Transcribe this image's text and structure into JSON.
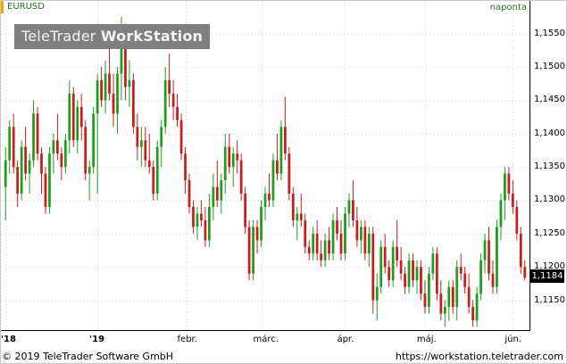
{
  "symbol": "EURUSD",
  "period": "naponta",
  "watermark": {
    "part1": "TeleTrader ",
    "part2": "WorkStation"
  },
  "last_price": "1,1184",
  "footer": {
    "copyright": "© 2019 TeleTrader Software GmbH",
    "url": "https://workstation.teletrader.com"
  },
  "colors": {
    "up": "#1e9e1e",
    "down": "#c81e1e",
    "accent": "#f2a900",
    "text_green": "#1e7a1e"
  },
  "chart_data": {
    "type": "candlestick",
    "title": "EURUSD",
    "ylim": [
      1.1108,
      1.1595
    ],
    "y_ticks": [
      {
        "v": 1.155,
        "label": "1,1550"
      },
      {
        "v": 1.15,
        "label": "1,1500"
      },
      {
        "v": 1.145,
        "label": "1,1450"
      },
      {
        "v": 1.14,
        "label": "1,1400"
      },
      {
        "v": 1.135,
        "label": "1,1350"
      },
      {
        "v": 1.13,
        "label": "1,1300"
      },
      {
        "v": 1.125,
        "label": "1,1250"
      },
      {
        "v": 1.12,
        "label": "1,1200"
      },
      {
        "v": 1.115,
        "label": "1,1150"
      }
    ],
    "x_ticks": [
      {
        "i": 0,
        "label": "'18",
        "bold": true
      },
      {
        "i": 23,
        "label": "'19",
        "bold": true
      },
      {
        "i": 45,
        "label": "febr.",
        "bold": false
      },
      {
        "i": 64,
        "label": "márc.",
        "bold": false
      },
      {
        "i": 85,
        "label": "ápr.",
        "bold": false
      },
      {
        "i": 105,
        "label": "máj.",
        "bold": false
      },
      {
        "i": 127,
        "label": "jún.",
        "bold": false
      }
    ],
    "candles": [
      [
        1.132,
        1.138,
        1.127,
        1.136
      ],
      [
        1.136,
        1.142,
        1.134,
        1.141
      ],
      [
        1.141,
        1.143,
        1.134,
        1.135
      ],
      [
        1.135,
        1.136,
        1.129,
        1.131
      ],
      [
        1.131,
        1.139,
        1.13,
        1.138
      ],
      [
        1.138,
        1.141,
        1.133,
        1.134
      ],
      [
        1.134,
        1.137,
        1.131,
        1.136
      ],
      [
        1.136,
        1.145,
        1.135,
        1.143
      ],
      [
        1.143,
        1.144,
        1.136,
        1.137
      ],
      [
        1.137,
        1.138,
        1.131,
        1.134
      ],
      [
        1.134,
        1.135,
        1.128,
        1.129
      ],
      [
        1.129,
        1.138,
        1.128,
        1.137
      ],
      [
        1.137,
        1.14,
        1.134,
        1.139
      ],
      [
        1.139,
        1.143,
        1.136,
        1.137
      ],
      [
        1.137,
        1.138,
        1.133,
        1.135
      ],
      [
        1.135,
        1.14,
        1.134,
        1.139
      ],
      [
        1.139,
        1.148,
        1.137,
        1.146
      ],
      [
        1.146,
        1.147,
        1.138,
        1.139
      ],
      [
        1.139,
        1.145,
        1.137,
        1.144
      ],
      [
        1.144,
        1.146,
        1.139,
        1.141
      ],
      [
        1.141,
        1.142,
        1.133,
        1.134
      ],
      [
        1.134,
        1.136,
        1.13,
        1.135
      ],
      [
        1.135,
        1.144,
        1.134,
        1.143
      ],
      [
        1.143,
        1.149,
        1.131,
        1.148
      ],
      [
        1.148,
        1.15,
        1.144,
        1.145
      ],
      [
        1.145,
        1.151,
        1.143,
        1.149
      ],
      [
        1.149,
        1.154,
        1.145,
        1.146
      ],
      [
        1.146,
        1.149,
        1.141,
        1.143
      ],
      [
        1.143,
        1.15,
        1.14,
        1.149
      ],
      [
        1.149,
        1.1575,
        1.145,
        1.154
      ],
      [
        1.154,
        1.1565,
        1.145,
        1.147
      ],
      [
        1.147,
        1.151,
        1.144,
        1.148
      ],
      [
        1.148,
        1.149,
        1.14,
        1.141
      ],
      [
        1.141,
        1.143,
        1.136,
        1.138
      ],
      [
        1.138,
        1.141,
        1.135,
        1.139
      ],
      [
        1.139,
        1.141,
        1.135,
        1.136
      ],
      [
        1.136,
        1.14,
        1.134,
        1.135
      ],
      [
        1.135,
        1.136,
        1.13,
        1.131
      ],
      [
        1.131,
        1.139,
        1.13,
        1.138
      ],
      [
        1.138,
        1.142,
        1.135,
        1.141
      ],
      [
        1.141,
        1.15,
        1.14,
        1.148
      ],
      [
        1.148,
        1.152,
        1.144,
        1.146
      ],
      [
        1.146,
        1.148,
        1.142,
        1.144
      ],
      [
        1.144,
        1.146,
        1.141,
        1.142
      ],
      [
        1.142,
        1.143,
        1.136,
        1.137
      ],
      [
        1.137,
        1.138,
        1.131,
        1.133
      ],
      [
        1.133,
        1.134,
        1.128,
        1.129
      ],
      [
        1.129,
        1.13,
        1.125,
        1.126
      ],
      [
        1.126,
        1.129,
        1.124,
        1.128
      ],
      [
        1.128,
        1.13,
        1.126,
        1.127
      ],
      [
        1.127,
        1.129,
        1.123,
        1.124
      ],
      [
        1.124,
        1.131,
        1.123,
        1.129
      ],
      [
        1.129,
        1.134,
        1.127,
        1.132
      ],
      [
        1.132,
        1.136,
        1.129,
        1.13
      ],
      [
        1.13,
        1.134,
        1.128,
        1.133
      ],
      [
        1.133,
        1.14,
        1.131,
        1.138
      ],
      [
        1.138,
        1.14,
        1.134,
        1.135
      ],
      [
        1.135,
        1.138,
        1.132,
        1.137
      ],
      [
        1.137,
        1.139,
        1.134,
        1.136
      ],
      [
        1.136,
        1.137,
        1.13,
        1.131
      ],
      [
        1.131,
        1.132,
        1.125,
        1.126
      ],
      [
        1.126,
        1.127,
        1.118,
        1.119
      ],
      [
        1.119,
        1.127,
        1.118,
        1.126
      ],
      [
        1.126,
        1.127,
        1.122,
        1.124
      ],
      [
        1.124,
        1.13,
        1.123,
        1.129
      ],
      [
        1.129,
        1.132,
        1.127,
        1.131
      ],
      [
        1.131,
        1.134,
        1.129,
        1.13
      ],
      [
        1.13,
        1.137,
        1.129,
        1.136
      ],
      [
        1.136,
        1.14,
        1.133,
        1.134
      ],
      [
        1.134,
        1.142,
        1.133,
        1.141
      ],
      [
        1.141,
        1.1455,
        1.136,
        1.137
      ],
      [
        1.137,
        1.138,
        1.13,
        1.131
      ],
      [
        1.131,
        1.132,
        1.126,
        1.127
      ],
      [
        1.127,
        1.129,
        1.124,
        1.128
      ],
      [
        1.128,
        1.131,
        1.126,
        1.127
      ],
      [
        1.127,
        1.128,
        1.122,
        1.123
      ],
      [
        1.123,
        1.124,
        1.121,
        1.122
      ],
      [
        1.122,
        1.126,
        1.121,
        1.125
      ],
      [
        1.125,
        1.127,
        1.121,
        1.122
      ],
      [
        1.122,
        1.124,
        1.12,
        1.121
      ],
      [
        1.121,
        1.125,
        1.12,
        1.124
      ],
      [
        1.124,
        1.126,
        1.121,
        1.122
      ],
      [
        1.122,
        1.128,
        1.121,
        1.127
      ],
      [
        1.127,
        1.129,
        1.124,
        1.125
      ],
      [
        1.125,
        1.127,
        1.121,
        1.122
      ],
      [
        1.122,
        1.129,
        1.121,
        1.128
      ],
      [
        1.128,
        1.131,
        1.126,
        1.13
      ],
      [
        1.13,
        1.133,
        1.126,
        1.127
      ],
      [
        1.127,
        1.129,
        1.123,
        1.124
      ],
      [
        1.124,
        1.127,
        1.122,
        1.126
      ],
      [
        1.126,
        1.127,
        1.121,
        1.122
      ],
      [
        1.122,
        1.126,
        1.12,
        1.125
      ],
      [
        1.125,
        1.126,
        1.113,
        1.115
      ],
      [
        1.115,
        1.119,
        1.112,
        1.117
      ],
      [
        1.117,
        1.124,
        1.116,
        1.123
      ],
      [
        1.123,
        1.125,
        1.119,
        1.12
      ],
      [
        1.12,
        1.121,
        1.117,
        1.118
      ],
      [
        1.118,
        1.124,
        1.117,
        1.123
      ],
      [
        1.123,
        1.127,
        1.12,
        1.121
      ],
      [
        1.121,
        1.123,
        1.118,
        1.119
      ],
      [
        1.119,
        1.12,
        1.116,
        1.117
      ],
      [
        1.117,
        1.122,
        1.116,
        1.121
      ],
      [
        1.121,
        1.122,
        1.117,
        1.118
      ],
      [
        1.118,
        1.121,
        1.116,
        1.12
      ],
      [
        1.12,
        1.121,
        1.115,
        1.116
      ],
      [
        1.116,
        1.118,
        1.113,
        1.114
      ],
      [
        1.114,
        1.12,
        1.113,
        1.119
      ],
      [
        1.119,
        1.123,
        1.118,
        1.122
      ],
      [
        1.122,
        1.123,
        1.115,
        1.116
      ],
      [
        1.116,
        1.118,
        1.112,
        1.113
      ],
      [
        1.113,
        1.115,
        1.111,
        1.114
      ],
      [
        1.114,
        1.118,
        1.112,
        1.117
      ],
      [
        1.117,
        1.118,
        1.113,
        1.114
      ],
      [
        1.114,
        1.121,
        1.112,
        1.12
      ],
      [
        1.12,
        1.122,
        1.118,
        1.119
      ],
      [
        1.119,
        1.12,
        1.116,
        1.117
      ],
      [
        1.117,
        1.119,
        1.113,
        1.114
      ],
      [
        1.114,
        1.115,
        1.111,
        1.112
      ],
      [
        1.112,
        1.117,
        1.111,
        1.116
      ],
      [
        1.116,
        1.122,
        1.115,
        1.121
      ],
      [
        1.121,
        1.125,
        1.119,
        1.124
      ],
      [
        1.124,
        1.126,
        1.118,
        1.119
      ],
      [
        1.119,
        1.121,
        1.116,
        1.117
      ],
      [
        1.117,
        1.127,
        1.116,
        1.126
      ],
      [
        1.126,
        1.131,
        1.124,
        1.13
      ],
      [
        1.13,
        1.135,
        1.127,
        1.134
      ],
      [
        1.134,
        1.135,
        1.13,
        1.131
      ],
      [
        1.131,
        1.133,
        1.128,
        1.129
      ],
      [
        1.129,
        1.13,
        1.124,
        1.125
      ],
      [
        1.125,
        1.126,
        1.119,
        1.12
      ],
      [
        1.12,
        1.121,
        1.118,
        1.1184
      ]
    ]
  }
}
